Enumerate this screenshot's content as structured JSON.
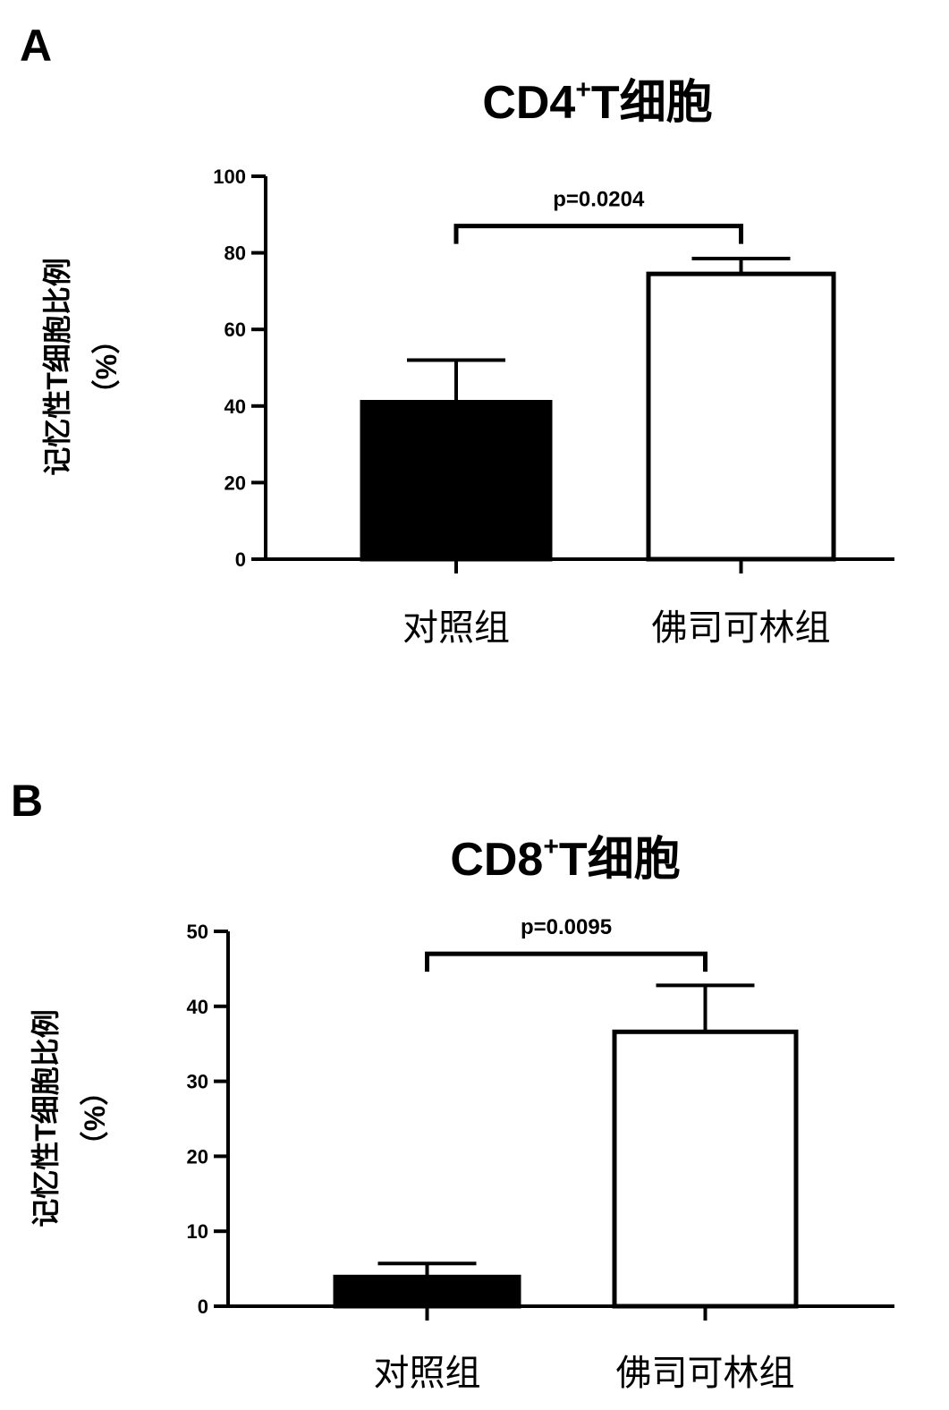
{
  "chart_data": [
    {
      "type": "bar",
      "panel_label": "A",
      "title": "CD4",
      "title_sup": "+",
      "title_suffix": "T细胞",
      "ylabel": "记忆性T细胞比例",
      "ylabel_unit": "（%）",
      "categories": [
        "对照组",
        "佛司可林组"
      ],
      "values": [
        41,
        74.5
      ],
      "error_upper": [
        52,
        78.5
      ],
      "fills": [
        "#000000",
        "#ffffff"
      ],
      "ylim": [
        0,
        100
      ],
      "yticks": [
        "0",
        "20",
        "40",
        "60",
        "80",
        "100"
      ],
      "ytick_values": [
        0,
        20,
        40,
        60,
        80,
        100
      ],
      "annotation": "p=0.0204",
      "bracket_y": 87
    },
    {
      "type": "bar",
      "panel_label": "B",
      "title": "CD8",
      "title_sup": "+",
      "title_suffix": "T细胞",
      "ylabel": "记忆性T细胞比例",
      "ylabel_unit": "（%）",
      "categories": [
        "对照组",
        "佛司可林组"
      ],
      "values": [
        3.9,
        36.6
      ],
      "error_upper": [
        5.7,
        42.8
      ],
      "fills": [
        "#000000",
        "#ffffff"
      ],
      "ylim": [
        0,
        50
      ],
      "yticks": [
        "0",
        "10",
        "20",
        "30",
        "40",
        "50"
      ],
      "ytick_values": [
        0,
        10,
        20,
        30,
        40,
        50
      ],
      "annotation": "p=0.0095",
      "bracket_y": 47
    }
  ]
}
